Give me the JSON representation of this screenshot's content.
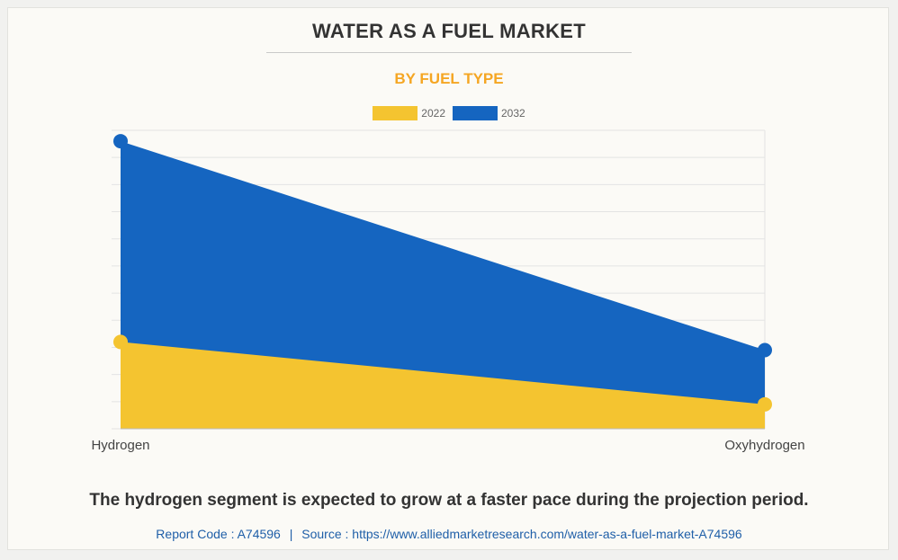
{
  "title": "WATER AS A FUEL MARKET",
  "subtitle": "BY FUEL TYPE",
  "caption": "The hydrogen segment is expected to grow at a faster pace during the projection period.",
  "source": {
    "report_code": "Report Code : A74596",
    "separator": "|",
    "source_text": "Source : https://www.alliedmarketresearch.com/water-as-a-fuel-market-A74596"
  },
  "colors": {
    "series_2022": "#f4c430",
    "series_2032": "#1565c0",
    "grid": "#e3e3e3",
    "axis": "#bbbbbb"
  },
  "chart_data": {
    "type": "area",
    "categories": [
      "Hydrogen",
      "Oxyhydrogen"
    ],
    "series": [
      {
        "name": "2022",
        "values": [
          3.2,
          0.9
        ]
      },
      {
        "name": "2032",
        "values": [
          10.6,
          2.9
        ]
      }
    ],
    "ylim": [
      0,
      11
    ],
    "grid": true,
    "legend_position": "top-center",
    "xlabel": "",
    "ylabel": ""
  }
}
